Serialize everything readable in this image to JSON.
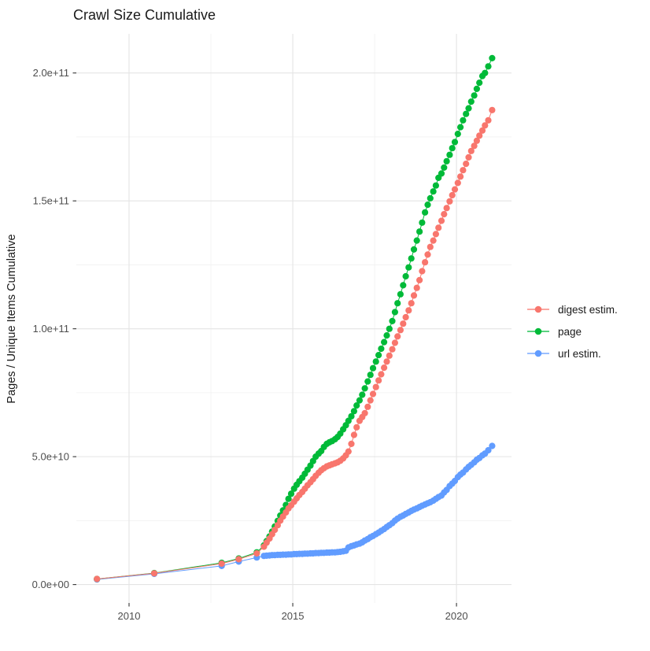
{
  "page": {
    "title": "Crawl Size Cumulative"
  },
  "legend": {
    "items": [
      {
        "label": "digest estim.",
        "color": "#F8766D"
      },
      {
        "label": "page",
        "color": "#00BA38"
      },
      {
        "label": "url estim.",
        "color": "#619CFF"
      }
    ]
  },
  "chart_data": {
    "type": "scatter",
    "title": "Crawl Size Cumulative",
    "xlabel": "",
    "ylabel": "Pages / Unique Items Cumulative",
    "grid": true,
    "legend_position": "right",
    "x_domain": [
      2008.39,
      2021.68
    ],
    "y_domain": [
      -7200000000,
      215300000000
    ],
    "x_ticks": {
      "values": [
        2010,
        2015,
        2020
      ],
      "labels": [
        "2010",
        "2015",
        "2020"
      ]
    },
    "x_minor_ticks": [
      2012.5,
      2017.5
    ],
    "y_ticks": {
      "values": [
        0,
        50000000000.0,
        100000000000.0,
        150000000000.0,
        200000000000.0
      ],
      "labels": [
        "0.0e+00",
        "5.0e+10",
        "1.0e+11",
        "1.5e+11",
        "2.0e+11"
      ]
    },
    "y_minor_ticks": [
      25000000000.0,
      75000000000.0,
      125000000000.0,
      175000000000.0
    ],
    "x": [
      2009.02,
      2010.77,
      2012.83,
      2013.35,
      2013.9,
      2014.12,
      2014.2,
      2014.29,
      2014.37,
      2014.45,
      2014.54,
      2014.62,
      2014.7,
      2014.79,
      2014.87,
      2014.95,
      2015.04,
      2015.12,
      2015.2,
      2015.29,
      2015.37,
      2015.45,
      2015.54,
      2015.62,
      2015.7,
      2015.79,
      2015.87,
      2015.95,
      2016.04,
      2016.12,
      2016.2,
      2016.29,
      2016.37,
      2016.45,
      2016.54,
      2016.62,
      2016.7,
      2016.79,
      2016.87,
      2016.95,
      2017.04,
      2017.12,
      2017.2,
      2017.29,
      2017.37,
      2017.45,
      2017.54,
      2017.62,
      2017.7,
      2017.79,
      2017.87,
      2017.95,
      2018.04,
      2018.12,
      2018.2,
      2018.29,
      2018.37,
      2018.45,
      2018.54,
      2018.62,
      2018.7,
      2018.79,
      2018.87,
      2018.95,
      2019.04,
      2019.12,
      2019.2,
      2019.29,
      2019.37,
      2019.45,
      2019.54,
      2019.62,
      2019.7,
      2019.79,
      2019.87,
      2019.95,
      2020.04,
      2020.12,
      2020.2,
      2020.29,
      2020.37,
      2020.45,
      2020.54,
      2020.62,
      2020.7,
      2020.79,
      2020.87,
      2020.97,
      2021.09
    ],
    "series": [
      {
        "name": "url estim.",
        "color": "#619CFF",
        "values": [
          2000000000.0,
          4200000000.0,
          7300000000.0,
          9000000000.0,
          10600000000.0,
          11200000000.0,
          11300000000.0,
          11400000000.0,
          11500000000.0,
          11500000000.0,
          11600000000.0,
          11600000000.0,
          11700000000.0,
          11700000000.0,
          11800000000.0,
          11800000000.0,
          11900000000.0,
          11900000000.0,
          12000000000.0,
          12000000000.0,
          12100000000.0,
          12100000000.0,
          12200000000.0,
          12200000000.0,
          12300000000.0,
          12300000000.0,
          12400000000.0,
          12400000000.0,
          12500000000.0,
          12500000000.0,
          12600000000.0,
          12600000000.0,
          12700000000.0,
          12800000000.0,
          13000000000.0,
          13200000000.0,
          14500000000.0,
          15000000000.0,
          15300000000.0,
          15700000000.0,
          16000000000.0,
          16500000000.0,
          17200000000.0,
          17800000000.0,
          18500000000.0,
          19000000000.0,
          19700000000.0,
          20300000000.0,
          21000000000.0,
          21700000000.0,
          22500000000.0,
          23200000000.0,
          24000000000.0,
          25000000000.0,
          25800000000.0,
          26500000000.0,
          27000000000.0,
          27600000000.0,
          28200000000.0,
          28800000000.0,
          29300000000.0,
          29800000000.0,
          30300000000.0,
          30800000000.0,
          31300000000.0,
          31800000000.0,
          32200000000.0,
          32800000000.0,
          33500000000.0,
          34200000000.0,
          34800000000.0,
          36000000000.0,
          37000000000.0,
          38500000000.0,
          39500000000.0,
          40500000000.0,
          42000000000.0,
          43000000000.0,
          43800000000.0,
          45000000000.0,
          46000000000.0,
          46800000000.0,
          47800000000.0,
          48800000000.0,
          49500000000.0,
          50500000000.0,
          51200000000.0,
          52500000000.0,
          54200000000.0
        ]
      },
      {
        "name": "page",
        "color": "#00BA38",
        "values": [
          2200000000.0,
          4500000000.0,
          8500000000.0,
          10200000000.0,
          12600000000.0,
          15300000000.0,
          17000000000.0,
          18800000000.0,
          20700000000.0,
          22700000000.0,
          24900000000.0,
          27000000000.0,
          29000000000.0,
          31100000000.0,
          33500000000.0,
          35500000000.0,
          37500000000.0,
          39000000000.0,
          40400000000.0,
          41800000000.0,
          43300000000.0,
          44900000000.0,
          46500000000.0,
          48300000000.0,
          50000000000.0,
          51200000000.0,
          52200000000.0,
          53800000000.0,
          55000000000.0,
          55600000000.0,
          56100000000.0,
          56800000000.0,
          57700000000.0,
          59000000000.0,
          60700000000.0,
          62300000000.0,
          64000000000.0,
          65800000000.0,
          67800000000.0,
          70000000000.0,
          72000000000.0,
          74200000000.0,
          76700000000.0,
          79400000000.0,
          82000000000.0,
          84600000000.0,
          87200000000.0,
          89700000000.0,
          92200000000.0,
          94800000000.0,
          97400000000.0,
          100000000000.0,
          103000000000.0,
          106500000000.0,
          110000000000.0,
          113500000000.0,
          117000000000.0,
          120500000000.0,
          124000000000.0,
          127500000000.0,
          131000000000.0,
          134500000000.0,
          138000000000.0,
          141500000000.0,
          145500000000.0,
          148500000000.0,
          151000000000.0,
          153700000000.0,
          156000000000.0,
          159000000000.0,
          160700000000.0,
          163000000000.0,
          165500000000.0,
          168000000000.0,
          170600000000.0,
          173000000000.0,
          176200000000.0,
          178800000000.0,
          181500000000.0,
          184000000000.0,
          186200000000.0,
          188800000000.0,
          191200000000.0,
          193800000000.0,
          196200000000.0,
          198800000000.0,
          200000000000.0,
          202600000000.0,
          205800000000.0
        ]
      },
      {
        "name": "digest estim.",
        "color": "#F8766D",
        "values": [
          2200000000.0,
          4400000000.0,
          8200000000.0,
          9900000000.0,
          12200000000.0,
          14800000000.0,
          16400000000.0,
          18000000000.0,
          19700000000.0,
          21400000000.0,
          23200000000.0,
          25000000000.0,
          26600000000.0,
          28200000000.0,
          29800000000.0,
          31000000000.0,
          32400000000.0,
          33700000000.0,
          35000000000.0,
          36200000000.0,
          37500000000.0,
          38800000000.0,
          40000000000.0,
          41200000000.0,
          42500000000.0,
          43700000000.0,
          44700000000.0,
          45500000000.0,
          46200000000.0,
          46600000000.0,
          47000000000.0,
          47400000000.0,
          47800000000.0,
          48400000000.0,
          49300000000.0,
          50500000000.0,
          52000000000.0,
          55000000000.0,
          58500000000.0,
          61500000000.0,
          64000000000.0,
          65500000000.0,
          67000000000.0,
          69500000000.0,
          72000000000.0,
          74500000000.0,
          77200000000.0,
          79800000000.0,
          82200000000.0,
          84800000000.0,
          87200000000.0,
          89500000000.0,
          92000000000.0,
          94500000000.0,
          97000000000.0,
          99500000000.0,
          102000000000.0,
          104500000000.0,
          107200000000.0,
          110000000000.0,
          113000000000.0,
          116000000000.0,
          119000000000.0,
          122500000000.0,
          126000000000.0,
          129000000000.0,
          132000000000.0,
          134500000000.0,
          137000000000.0,
          139500000000.0,
          142200000000.0,
          144800000000.0,
          147200000000.0,
          149800000000.0,
          152200000000.0,
          154500000000.0,
          157000000000.0,
          159500000000.0,
          162000000000.0,
          164500000000.0,
          167000000000.0,
          169500000000.0,
          171500000000.0,
          173500000000.0,
          175500000000.0,
          177500000000.0,
          179500000000.0,
          181500000000.0,
          185500000000.0
        ]
      }
    ],
    "style": {
      "grid_major_color": "#E4E4E4",
      "grid_minor_color": "#F1F1F1",
      "tick_color": "#333333",
      "tick_label_color": "#4D4D4D",
      "background": "#FFFFFF"
    }
  }
}
